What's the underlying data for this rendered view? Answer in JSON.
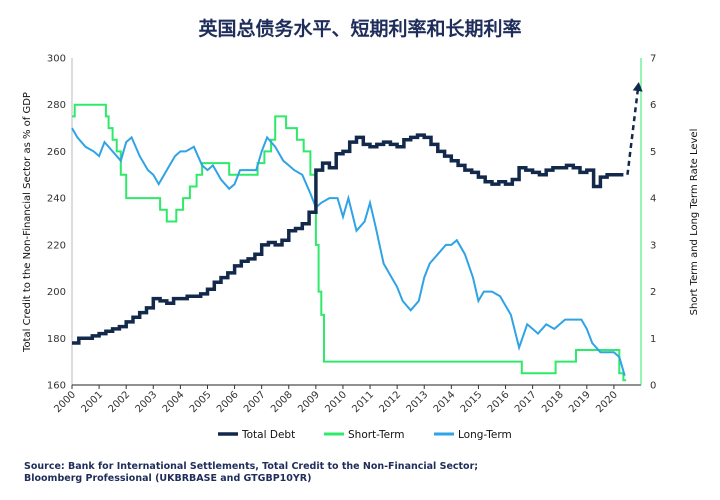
{
  "chart_data": {
    "type": "line",
    "title": "英国总债务水平、短期利率和长期利率",
    "ylabel_left": "Total Credit to the Non-Financial Sector as % of GDP",
    "ylabel_right": "Short Term and Long Term Rate Level",
    "x_ticks": [
      "2000",
      "2001",
      "2002",
      "2003",
      "2004",
      "2005",
      "2006",
      "2007",
      "2008",
      "2009",
      "2010",
      "2011",
      "2012",
      "2013",
      "2014",
      "2015",
      "2016",
      "2017",
      "2018",
      "2019",
      "2020"
    ],
    "xlim": [
      2000,
      2021
    ],
    "ylim_left": [
      160,
      300
    ],
    "yticks_left": [
      160,
      180,
      200,
      220,
      240,
      260,
      280,
      300
    ],
    "ylim_right": [
      0,
      7
    ],
    "yticks_right": [
      0,
      1,
      2,
      3,
      4,
      5,
      6,
      7
    ],
    "colors": {
      "total_debt": "#13294b",
      "short_term": "#2ee96a",
      "long_term": "#2fa3e6",
      "right_axis": "#2ee96a"
    },
    "series": [
      {
        "name": "Total Debt",
        "axis": "left",
        "step": true,
        "x": [
          2000.0,
          2000.25,
          2000.5,
          2000.75,
          2001.0,
          2001.25,
          2001.5,
          2001.75,
          2002.0,
          2002.25,
          2002.5,
          2002.75,
          2003.0,
          2003.25,
          2003.5,
          2003.75,
          2004.0,
          2004.25,
          2004.5,
          2004.75,
          2005.0,
          2005.25,
          2005.5,
          2005.75,
          2006.0,
          2006.25,
          2006.5,
          2006.75,
          2007.0,
          2007.25,
          2007.5,
          2007.75,
          2008.0,
          2008.25,
          2008.5,
          2008.75,
          2009.0,
          2009.25,
          2009.5,
          2009.75,
          2010.0,
          2010.25,
          2010.5,
          2010.75,
          2011.0,
          2011.25,
          2011.5,
          2011.75,
          2012.0,
          2012.25,
          2012.5,
          2012.75,
          2013.0,
          2013.25,
          2013.5,
          2013.75,
          2014.0,
          2014.25,
          2014.5,
          2014.75,
          2015.0,
          2015.25,
          2015.5,
          2015.75,
          2016.0,
          2016.25,
          2016.5,
          2016.75,
          2017.0,
          2017.25,
          2017.5,
          2017.75,
          2018.0,
          2018.25,
          2018.5,
          2018.75,
          2019.0,
          2019.25,
          2019.5,
          2019.75,
          2020.25
        ],
        "values": [
          178,
          180,
          180,
          181,
          182,
          183,
          184,
          185,
          187,
          189,
          191,
          193,
          197,
          196,
          195,
          197,
          197,
          198,
          198,
          199,
          201,
          204,
          206,
          208,
          211,
          213,
          214,
          216,
          220,
          221,
          220,
          222,
          226,
          227,
          229,
          234,
          252,
          255,
          253,
          259,
          260,
          264,
          266,
          263,
          262,
          263,
          264,
          263,
          262,
          265,
          266,
          267,
          266,
          263,
          260,
          258,
          256,
          254,
          252,
          251,
          249,
          247,
          246,
          247,
          246,
          248,
          253,
          252,
          251,
          250,
          252,
          253,
          253,
          254,
          253,
          251,
          252,
          245,
          249,
          250,
          250
        ],
        "dashed_extension": {
          "x": [
            2020.5,
            2020.9
          ],
          "values": [
            250,
            288
          ]
        }
      },
      {
        "name": "Short-Term",
        "axis": "right",
        "step": true,
        "x": [
          2000.0,
          2000.1,
          2001.15,
          2001.25,
          2001.35,
          2001.5,
          2001.65,
          2001.8,
          2002.0,
          2003.1,
          2003.25,
          2003.5,
          2003.85,
          2004.1,
          2004.35,
          2004.6,
          2004.8,
          2005.6,
          2005.8,
          2006.6,
          2006.85,
          2007.1,
          2007.35,
          2007.5,
          2007.9,
          2008.3,
          2008.55,
          2008.8,
          2009.0,
          2009.1,
          2009.2,
          2009.3,
          2016.55,
          2016.6,
          2017.85,
          2018.6,
          2020.0,
          2020.2,
          2020.35
        ],
        "values": [
          5.75,
          6.0,
          6.0,
          5.75,
          5.5,
          5.25,
          5.0,
          4.5,
          4.0,
          4.0,
          3.75,
          3.5,
          3.75,
          4.0,
          4.25,
          4.5,
          4.75,
          4.75,
          4.5,
          4.5,
          4.75,
          5.0,
          5.25,
          5.75,
          5.5,
          5.25,
          5.0,
          4.5,
          3.0,
          2.0,
          1.5,
          0.5,
          0.5,
          0.25,
          0.5,
          0.75,
          0.75,
          0.25,
          0.1
        ]
      },
      {
        "name": "Long-Term",
        "axis": "right",
        "step": false,
        "x": [
          2000.0,
          2000.2,
          2000.5,
          2000.8,
          2001.0,
          2001.2,
          2001.5,
          2001.8,
          2002.0,
          2002.2,
          2002.5,
          2002.8,
          2003.0,
          2003.2,
          2003.5,
          2003.8,
          2004.0,
          2004.2,
          2004.5,
          2004.8,
          2005.0,
          2005.2,
          2005.5,
          2005.8,
          2006.0,
          2006.2,
          2006.5,
          2006.8,
          2007.0,
          2007.2,
          2007.5,
          2007.8,
          2008.0,
          2008.2,
          2008.5,
          2008.8,
          2009.0,
          2009.2,
          2009.5,
          2009.8,
          2010.0,
          2010.2,
          2010.5,
          2010.8,
          2011.0,
          2011.2,
          2011.5,
          2011.8,
          2012.0,
          2012.2,
          2012.5,
          2012.8,
          2013.0,
          2013.2,
          2013.5,
          2013.8,
          2014.0,
          2014.2,
          2014.5,
          2014.8,
          2015.0,
          2015.2,
          2015.5,
          2015.8,
          2016.0,
          2016.2,
          2016.5,
          2016.8,
          2017.0,
          2017.2,
          2017.5,
          2017.8,
          2018.0,
          2018.2,
          2018.5,
          2018.8,
          2019.0,
          2019.2,
          2019.5,
          2019.8,
          2020.0,
          2020.2,
          2020.4
        ],
        "values": [
          5.5,
          5.3,
          5.1,
          5.0,
          4.9,
          5.2,
          5.0,
          4.8,
          5.2,
          5.3,
          4.9,
          4.6,
          4.5,
          4.3,
          4.6,
          4.9,
          5.0,
          5.0,
          5.1,
          4.7,
          4.6,
          4.7,
          4.4,
          4.2,
          4.3,
          4.6,
          4.6,
          4.6,
          5.0,
          5.3,
          5.1,
          4.8,
          4.7,
          4.6,
          4.5,
          4.1,
          3.8,
          3.9,
          4.0,
          4.0,
          3.6,
          4.0,
          3.3,
          3.5,
          3.9,
          3.4,
          2.6,
          2.3,
          2.1,
          1.8,
          1.6,
          1.8,
          2.3,
          2.6,
          2.8,
          3.0,
          3.0,
          3.1,
          2.8,
          2.3,
          1.8,
          2.0,
          2.0,
          1.9,
          1.7,
          1.5,
          0.8,
          1.3,
          1.2,
          1.1,
          1.3,
          1.2,
          1.3,
          1.4,
          1.4,
          1.4,
          1.2,
          0.9,
          0.7,
          0.7,
          0.7,
          0.6,
          0.2
        ]
      }
    ],
    "legend_position": "bottom",
    "grid": false
  },
  "source_note": {
    "line1": "Source: Bank for International Settlements, Total Credit to the Non-Financial Sector;",
    "line2": "Bloomberg Professional (UKBRBASE and GTGBP10YR)"
  }
}
